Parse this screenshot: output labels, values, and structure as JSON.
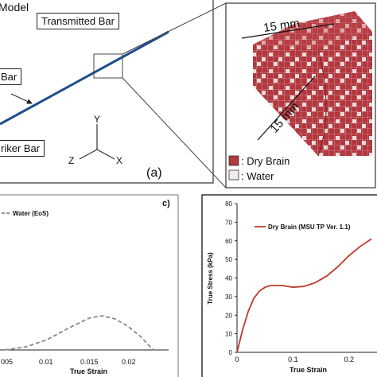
{
  "panel_a": {
    "model_text": "Model",
    "transmitted_bar": "Transmitted Bar",
    "incident_bar": "Bar",
    "striker_bar": "riker Bar",
    "panel_tag": "(a)",
    "axis_y": "Y",
    "axis_z": "Z",
    "axis_x": "X",
    "dim_top": "15 mm",
    "dim_side": "15 mm",
    "legend": [
      {
        "label": ": Dry Brain",
        "color": "#b2373f"
      },
      {
        "label": ": Water",
        "color": "#f2eaea"
      }
    ]
  },
  "panel_b": {
    "panel_tag": "c)",
    "legend": "Water (EoS)",
    "xlabel": "True Strain",
    "xticks": [
      "005",
      "0.01",
      "0.015",
      "0.02"
    ]
  },
  "panel_c": {
    "ylabel": "True Stress (kPa)",
    "xlabel": "True Strain",
    "legend": "Dry Brain (MSU TP Ver. 1.1)",
    "yticks": [
      "0",
      "10",
      "20",
      "30",
      "40",
      "50",
      "60",
      "70",
      "80"
    ],
    "xticks": [
      "0",
      "0.1",
      "0.2"
    ]
  },
  "chart_data": [
    {
      "type": "line",
      "xlabel": "True Strain",
      "ylabel": "",
      "series": [
        {
          "name": "Water (EoS)",
          "x": [
            0.005,
            0.0075,
            0.01,
            0.0125,
            0.015,
            0.0165,
            0.018,
            0.0195,
            0.021,
            0.0225
          ],
          "y": [
            0.0,
            0.06,
            0.2,
            0.42,
            0.62,
            0.66,
            0.6,
            0.46,
            0.26,
            0.0
          ]
        }
      ]
    },
    {
      "type": "line",
      "xlabel": "True Strain",
      "ylabel": "True Stress (kPa)",
      "ylim": [
        0,
        80
      ],
      "xlim": [
        0,
        0.25
      ],
      "series": [
        {
          "name": "Dry Brain (MSU TP Ver. 1.1)",
          "x": [
            0,
            0.01,
            0.02,
            0.03,
            0.04,
            0.05,
            0.06,
            0.08,
            0.1,
            0.12,
            0.14,
            0.16,
            0.18,
            0.2,
            0.22,
            0.24
          ],
          "y": [
            0,
            12,
            22,
            29,
            33,
            35,
            36,
            36,
            35,
            35.5,
            37.5,
            41,
            46,
            52,
            57,
            61
          ]
        }
      ]
    }
  ]
}
